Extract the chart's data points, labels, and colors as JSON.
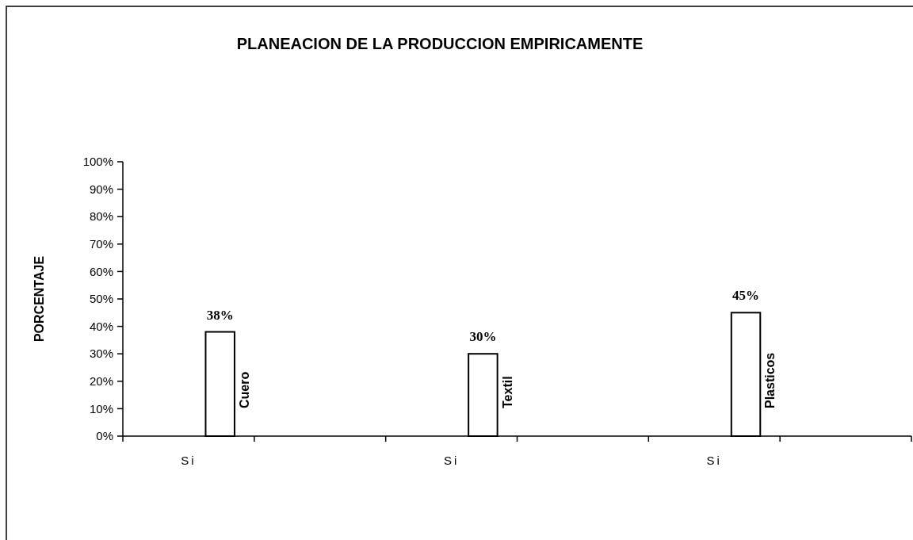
{
  "chart_data": {
    "type": "bar",
    "title": "PLANEACION DE LA PRODUCCION EMPIRICAMENTE",
    "ylabel": "PORCENTAJE",
    "categories": [
      "Si",
      null,
      "Si",
      null,
      "Si",
      null
    ],
    "series": [
      {
        "name": "Cuero",
        "color": "#ffffff",
        "values": [
          38,
          null,
          null,
          null,
          null,
          null
        ],
        "value_labels": [
          "38%",
          null,
          null,
          null,
          null,
          null
        ]
      },
      {
        "name": "Textil",
        "color": "#ffffff",
        "values": [
          null,
          null,
          30,
          null,
          null,
          null
        ],
        "value_labels": [
          null,
          null,
          "30%",
          null,
          null,
          null
        ]
      },
      {
        "name": "Plasticos",
        "color": "#ffffff",
        "values": [
          null,
          null,
          null,
          null,
          45,
          null
        ],
        "value_labels": [
          null,
          null,
          null,
          null,
          "45%",
          null
        ]
      }
    ],
    "ylim": [
      0,
      100
    ],
    "yticks": [
      {
        "value": 0,
        "label": "0%"
      },
      {
        "value": 10,
        "label": "10%"
      },
      {
        "value": 20,
        "label": "20%"
      },
      {
        "value": 30,
        "label": "30%"
      },
      {
        "value": 40,
        "label": "40%"
      },
      {
        "value": 50,
        "label": "50%"
      },
      {
        "value": 60,
        "label": "60%"
      },
      {
        "value": 70,
        "label": "70%"
      },
      {
        "value": 80,
        "label": "80%"
      },
      {
        "value": 90,
        "label": "90%"
      },
      {
        "value": 100,
        "label": "100%"
      }
    ],
    "grid": false
  }
}
